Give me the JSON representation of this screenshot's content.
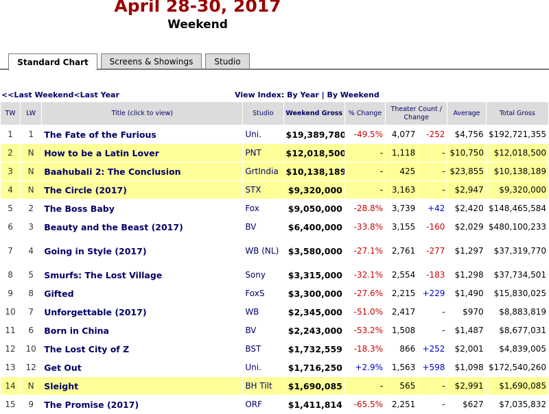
{
  "header": {
    "title": "April 28-30, 2017",
    "subtitle": "Weekend"
  },
  "tabs": [
    {
      "label": "Standard Chart",
      "active": true
    },
    {
      "label": "Screens & Showings",
      "active": false
    },
    {
      "label": "Studio",
      "active": false
    }
  ],
  "nav": {
    "last_weekend": "<<Last Weekend",
    "last_year": "<Last Year",
    "view_index_label": "View Index:",
    "by_year": "By Year",
    "separator": "|",
    "by_weekend": "By Weekend"
  },
  "table": {
    "columns": {
      "tw": "TW",
      "lw": "LW",
      "title": "Title (click to view)",
      "studio": "Studio",
      "weekend_gross": "Weekend Gross",
      "pct_change": "% Change",
      "theater_count": "Theater Count / Change",
      "average": "Average",
      "total_gross": "Total Gross"
    },
    "rows": [
      {
        "tw": "1",
        "lw": "1",
        "title": "The Fate of the Furious",
        "studio": "Uni.",
        "gross": "$19,389,780",
        "pct": "-49.5%",
        "theaters": "4,077",
        "change": "-252",
        "avg": "$4,756",
        "total": "$192,721,355"
      },
      {
        "tw": "2",
        "lw": "N",
        "title": "How to be a Latin Lover",
        "studio": "PNT",
        "gross": "$12,018,500",
        "pct": "-",
        "theaters": "1,118",
        "change": "-",
        "avg": "$10,750",
        "total": "$12,018,500"
      },
      {
        "tw": "3",
        "lw": "N",
        "title": "Baahubali 2: The Conclusion",
        "studio": "GrtIndia",
        "gross": "$10,138,189",
        "pct": "-",
        "theaters": "425",
        "change": "-",
        "avg": "$23,855",
        "total": "$10,138,189"
      },
      {
        "tw": "4",
        "lw": "N",
        "title": "The Circle (2017)",
        "studio": "STX",
        "gross": "$9,320,000",
        "pct": "-",
        "theaters": "3,163",
        "change": "-",
        "avg": "$2,947",
        "total": "$9,320,000"
      },
      {
        "tw": "5",
        "lw": "2",
        "title": "The Boss Baby",
        "studio": "Fox",
        "gross": "$9,050,000",
        "pct": "-28.8%",
        "theaters": "3,739",
        "change": "+42",
        "avg": "$2,420",
        "total": "$148,465,584"
      },
      {
        "tw": "6",
        "lw": "3",
        "title": "Beauty and the Beast (2017)",
        "studio": "BV",
        "gross": "$6,400,000",
        "pct": "-33.8%",
        "theaters": "3,155",
        "change": "-160",
        "avg": "$2,029",
        "total": "$480,100,233"
      },
      {
        "tw": "7",
        "lw": "4",
        "title": "Going in Style (2017)",
        "studio": "WB (NL)",
        "gross": "$3,580,000",
        "pct": "-27.1%",
        "theaters": "2,761",
        "change": "-277",
        "avg": "$1,297",
        "total": "$37,319,770"
      },
      {
        "tw": "8",
        "lw": "5",
        "title": "Smurfs: The Lost Village",
        "studio": "Sony",
        "gross": "$3,315,000",
        "pct": "-32.1%",
        "theaters": "2,554",
        "change": "-183",
        "avg": "$1,298",
        "total": "$37,734,501"
      },
      {
        "tw": "9",
        "lw": "8",
        "title": "Gifted",
        "studio": "FoxS",
        "gross": "$3,300,000",
        "pct": "-27.6%",
        "theaters": "2,215",
        "change": "+229",
        "avg": "$1,490",
        "total": "$15,830,025"
      },
      {
        "tw": "10",
        "lw": "7",
        "title": "Unforgettable (2017)",
        "studio": "WB",
        "gross": "$2,345,000",
        "pct": "-51.0%",
        "theaters": "2,417",
        "change": "-",
        "avg": "$970",
        "total": "$8,883,819"
      },
      {
        "tw": "11",
        "lw": "6",
        "title": "Born in China",
        "studio": "BV",
        "gross": "$2,243,000",
        "pct": "-53.2%",
        "theaters": "1,508",
        "change": "-",
        "avg": "$1,487",
        "total": "$8,677,031"
      },
      {
        "tw": "12",
        "lw": "10",
        "title": "The Lost City of Z",
        "studio": "BST",
        "gross": "$1,732,559",
        "pct": "-18.3%",
        "theaters": "866",
        "change": "+252",
        "avg": "$2,001",
        "total": "$4,839,005"
      },
      {
        "tw": "13",
        "lw": "12",
        "title": "Get Out",
        "studio": "Uni.",
        "gross": "$1,716,250",
        "pct": "+2.9%",
        "theaters": "1,563",
        "change": "+598",
        "avg": "$1,098",
        "total": "$172,540,260"
      },
      {
        "tw": "14",
        "lw": "N",
        "title": "Sleight",
        "studio": "BH Tilt",
        "gross": "$1,690,085",
        "pct": "-",
        "theaters": "565",
        "change": "-",
        "avg": "$2,991",
        "total": "$1,690,085"
      },
      {
        "tw": "15",
        "lw": "9",
        "title": "The Promise (2017)",
        "studio": "ORF",
        "gross": "$1,411,814",
        "pct": "-65.5%",
        "theaters": "2,251",
        "change": "-",
        "avg": "$627",
        "total": "$7,035,832"
      }
    ]
  },
  "colors": {
    "title": "#990000",
    "link": "#000066",
    "highlight_new": "#ffff99",
    "negative": "#cc0000",
    "positive": "#0000cc",
    "header_bg": "#dcdcdc"
  }
}
